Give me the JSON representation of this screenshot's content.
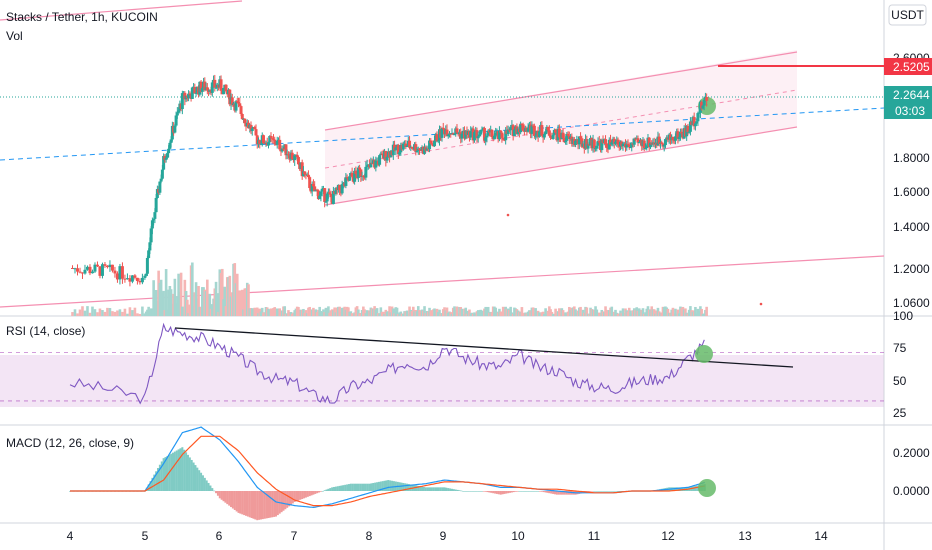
{
  "header": {
    "symbol_title": "Stacks / Tether, 1h, KUCOIN",
    "volume_label": "Vol",
    "currency": "USDT"
  },
  "price_axis": {
    "ticks": [
      "2.6000",
      "1.8000",
      "1.6000",
      "1.4000",
      "1.2000",
      "1.0600"
    ]
  },
  "tags": {
    "target_price": "2.5205",
    "last_price": "2.2644",
    "countdown": "03:03"
  },
  "rsi": {
    "title": "RSI (14, close)",
    "ticks": [
      "100",
      "75",
      "50",
      "25"
    ]
  },
  "macd": {
    "title": "MACD (12, 26, close, 9)",
    "ticks": [
      "0.2000",
      "0.0000"
    ]
  },
  "time_axis": {
    "ticks": [
      "4",
      "5",
      "6",
      "7",
      "8",
      "9",
      "10",
      "11",
      "12",
      "13",
      "14"
    ]
  },
  "colors": {
    "up": "#26a69a",
    "down": "#ef5350",
    "channel": "#f48fb1",
    "trend_blue": "#2196f3",
    "rsi_line": "#7e57c2",
    "rsi_band": "#e1bee7",
    "macd_line": "#2196f3",
    "signal_line": "#ff5722",
    "target_line": "#f23645",
    "marker": "#66bb6a"
  },
  "chart_data": {
    "type": "line",
    "title": "Stacks / Tether, 1h, KUCOIN",
    "x": [
      "4",
      "4.5",
      "5",
      "5.25",
      "5.5",
      "5.75",
      "6",
      "6.25",
      "6.5",
      "6.75",
      "7",
      "7.25",
      "7.5",
      "7.75",
      "8",
      "8.25",
      "8.5",
      "8.75",
      "9",
      "9.25",
      "9.5",
      "9.75",
      "10",
      "10.25",
      "10.5",
      "10.75",
      "11",
      "11.25",
      "11.5",
      "11.75",
      "12",
      "12.25",
      "12.5"
    ],
    "series": [
      {
        "name": "Price",
        "values": [
          1.2,
          1.19,
          1.16,
          1.78,
          2.25,
          2.35,
          2.36,
          2.18,
          1.94,
          1.92,
          1.8,
          1.6,
          1.56,
          1.68,
          1.74,
          1.84,
          1.9,
          1.86,
          2.02,
          1.98,
          1.98,
          1.96,
          2.04,
          2.01,
          1.98,
          1.92,
          1.91,
          1.9,
          1.9,
          1.92,
          1.94,
          2.01,
          2.26
        ]
      },
      {
        "name": "RSI",
        "values": [
          45,
          40,
          32,
          90,
          86,
          82,
          75,
          66,
          55,
          48,
          45,
          35,
          30,
          42,
          46,
          55,
          62,
          58,
          75,
          66,
          60,
          58,
          68,
          58,
          55,
          46,
          42,
          40,
          45,
          48,
          50,
          65,
          78
        ]
      },
      {
        "name": "MACD",
        "values": [
          0,
          0,
          0,
          0.15,
          0.32,
          0.35,
          0.28,
          0.16,
          0.02,
          -0.06,
          -0.08,
          -0.09,
          -0.07,
          -0.04,
          -0.01,
          0.02,
          0.03,
          0.04,
          0.06,
          0.05,
          0.04,
          0.02,
          0.02,
          0.01,
          0,
          -0.01,
          -0.01,
          -0.01,
          0,
          0,
          0.01,
          0.02,
          0.05
        ]
      },
      {
        "name": "Signal",
        "values": [
          0,
          0,
          0,
          0.06,
          0.2,
          0.3,
          0.3,
          0.22,
          0.1,
          0.01,
          -0.05,
          -0.08,
          -0.08,
          -0.06,
          -0.03,
          -0.01,
          0.01,
          0.03,
          0.05,
          0.05,
          0.04,
          0.03,
          0.02,
          0.01,
          0.01,
          0,
          -0.01,
          -0.01,
          0,
          0,
          0,
          0.01,
          0.03
        ]
      }
    ],
    "price_range": [
      1.03,
      2.73
    ],
    "rsi_range": [
      20,
      100
    ],
    "rsi_band": [
      30,
      70
    ],
    "macd_range": [
      -0.12,
      0.36
    ],
    "grid": false,
    "legend": "none"
  }
}
